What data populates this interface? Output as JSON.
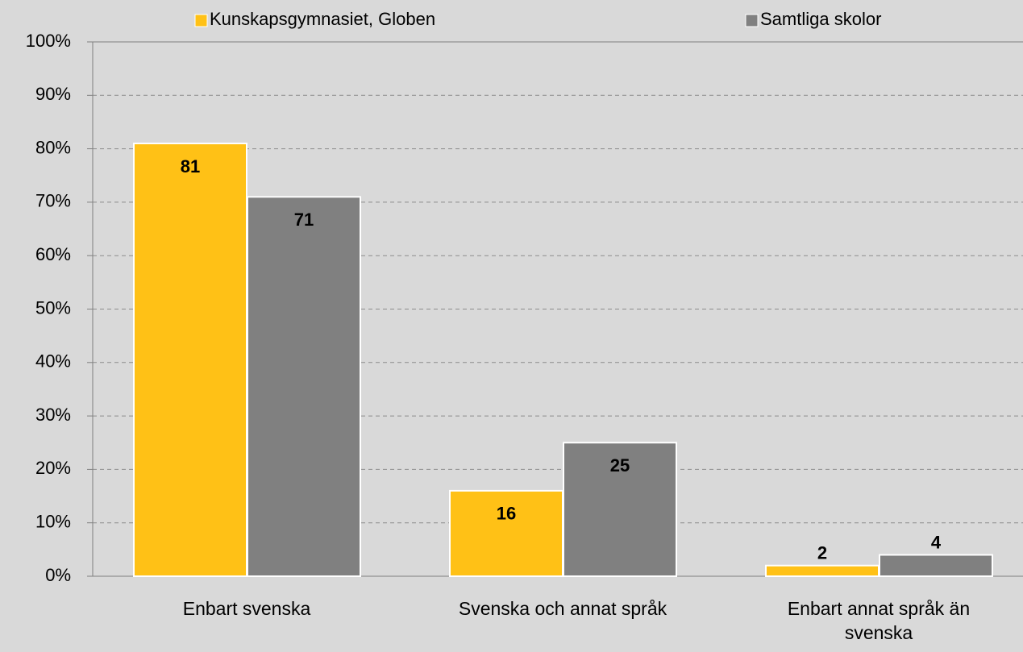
{
  "chart_data": {
    "type": "bar",
    "categories": [
      "Enbart svenska",
      "Svenska och annat språk",
      "Enbart annat språk än svenska"
    ],
    "series": [
      {
        "name": "Kunskapsgymnasiet, Globen",
        "color": "#ffc116",
        "values": [
          81,
          16,
          2
        ]
      },
      {
        "name": "Samtliga skolor",
        "color": "#808080",
        "values": [
          71,
          25,
          4
        ]
      }
    ],
    "ylim": [
      0,
      100
    ],
    "yticks": [
      {
        "value": 0,
        "label": "0%"
      },
      {
        "value": 10,
        "label": "10%"
      },
      {
        "value": 20,
        "label": "20%"
      },
      {
        "value": 30,
        "label": "30%"
      },
      {
        "value": 40,
        "label": "40%"
      },
      {
        "value": 50,
        "label": "50%"
      },
      {
        "value": 60,
        "label": "60%"
      },
      {
        "value": 70,
        "label": "70%"
      },
      {
        "value": 80,
        "label": "80%"
      },
      {
        "value": 90,
        "label": "90%"
      },
      {
        "value": 100,
        "label": "100%"
      }
    ],
    "grid": true
  }
}
